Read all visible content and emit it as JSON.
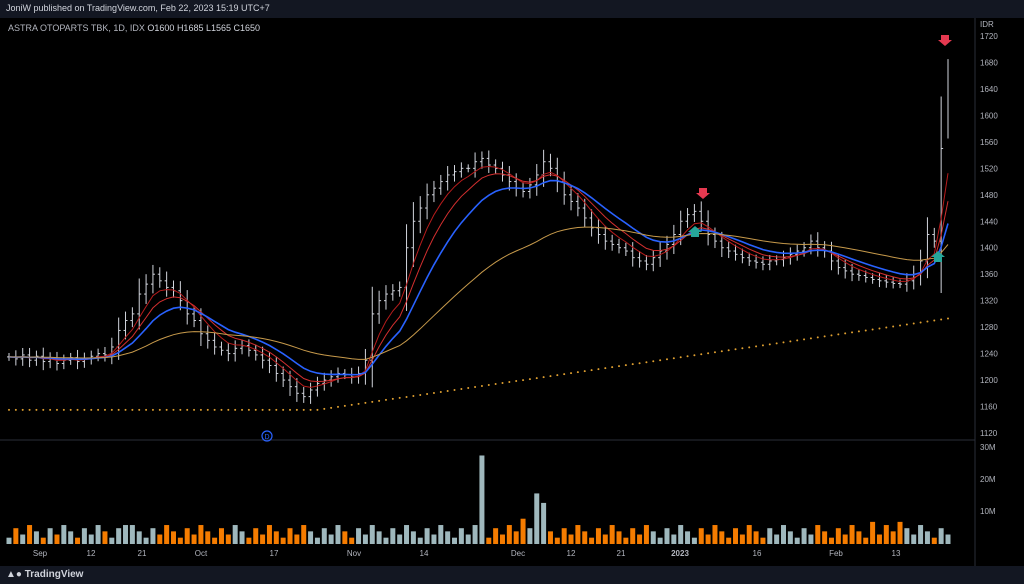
{
  "header": {
    "published_text": "JoniW published on TradingView.com, Feb 22, 2023 15:19 UTC+7"
  },
  "symbol": {
    "name": "ASTRA OTOPARTS TBK, 1D, IDX",
    "open": "O1600",
    "high": "H1685",
    "low": "L1565",
    "close": "C1650"
  },
  "footer": {
    "brand": "TradingView"
  },
  "price_axis": {
    "currency": "IDR",
    "ticks": [
      "1720",
      "1680",
      "1640",
      "1600",
      "1560",
      "1520",
      "1480",
      "1440",
      "1400",
      "1360",
      "1320",
      "1280",
      "1240",
      "1200",
      "1160",
      "1120"
    ]
  },
  "volume_axis": {
    "ticks": [
      "30M",
      "20M",
      "10M"
    ]
  },
  "time_axis": {
    "labels": [
      "Sep",
      "12",
      "21",
      "Oct",
      "17",
      "Nov",
      "14",
      "Dec",
      "12",
      "21",
      "2023",
      "16",
      "Feb",
      "13"
    ]
  },
  "markers": {
    "dividend_letter": "D"
  },
  "colors": {
    "bar": "#d1d4dc",
    "ema_fast": "#b71c1c",
    "ema_mid": "#d32f2f",
    "ema_blue": "#2962ff",
    "ema_slow": "#c79a4b",
    "dotted": "#e0a030",
    "vol_up": "#9fb8bd",
    "vol_down": "#f57c00",
    "arrow_down": "#e53950",
    "arrow_up": "#26a69a"
  }
}
